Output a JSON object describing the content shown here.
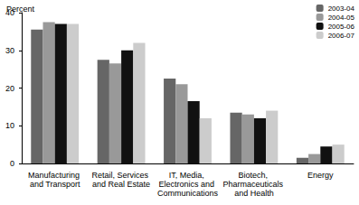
{
  "chart_data": {
    "type": "bar",
    "ylabel": "Percent",
    "categories": [
      "Manufacturing and Transport",
      "Retail, Services and Real Estate",
      "IT, Media, Electronics and Communications",
      "Biotech, Pharmaceuticals and Health",
      "Energy"
    ],
    "series": [
      {
        "name": "2003-04",
        "color": "#666666",
        "values": [
          35.5,
          27.5,
          22.5,
          13.5,
          1.5
        ]
      },
      {
        "name": "2004-05",
        "color": "#999999",
        "values": [
          37.5,
          26.5,
          21,
          13,
          2.5
        ]
      },
      {
        "name": "2005-06",
        "color": "#111111",
        "values": [
          37,
          30,
          16.5,
          12,
          4.5
        ]
      },
      {
        "name": "2006-07",
        "color": "#cccccc",
        "values": [
          37,
          32,
          12,
          14,
          5
        ]
      }
    ],
    "ylim": [
      0,
      40
    ],
    "yticks": [
      0,
      10,
      20,
      30,
      40
    ],
    "grid": false,
    "legend": "top-right"
  }
}
